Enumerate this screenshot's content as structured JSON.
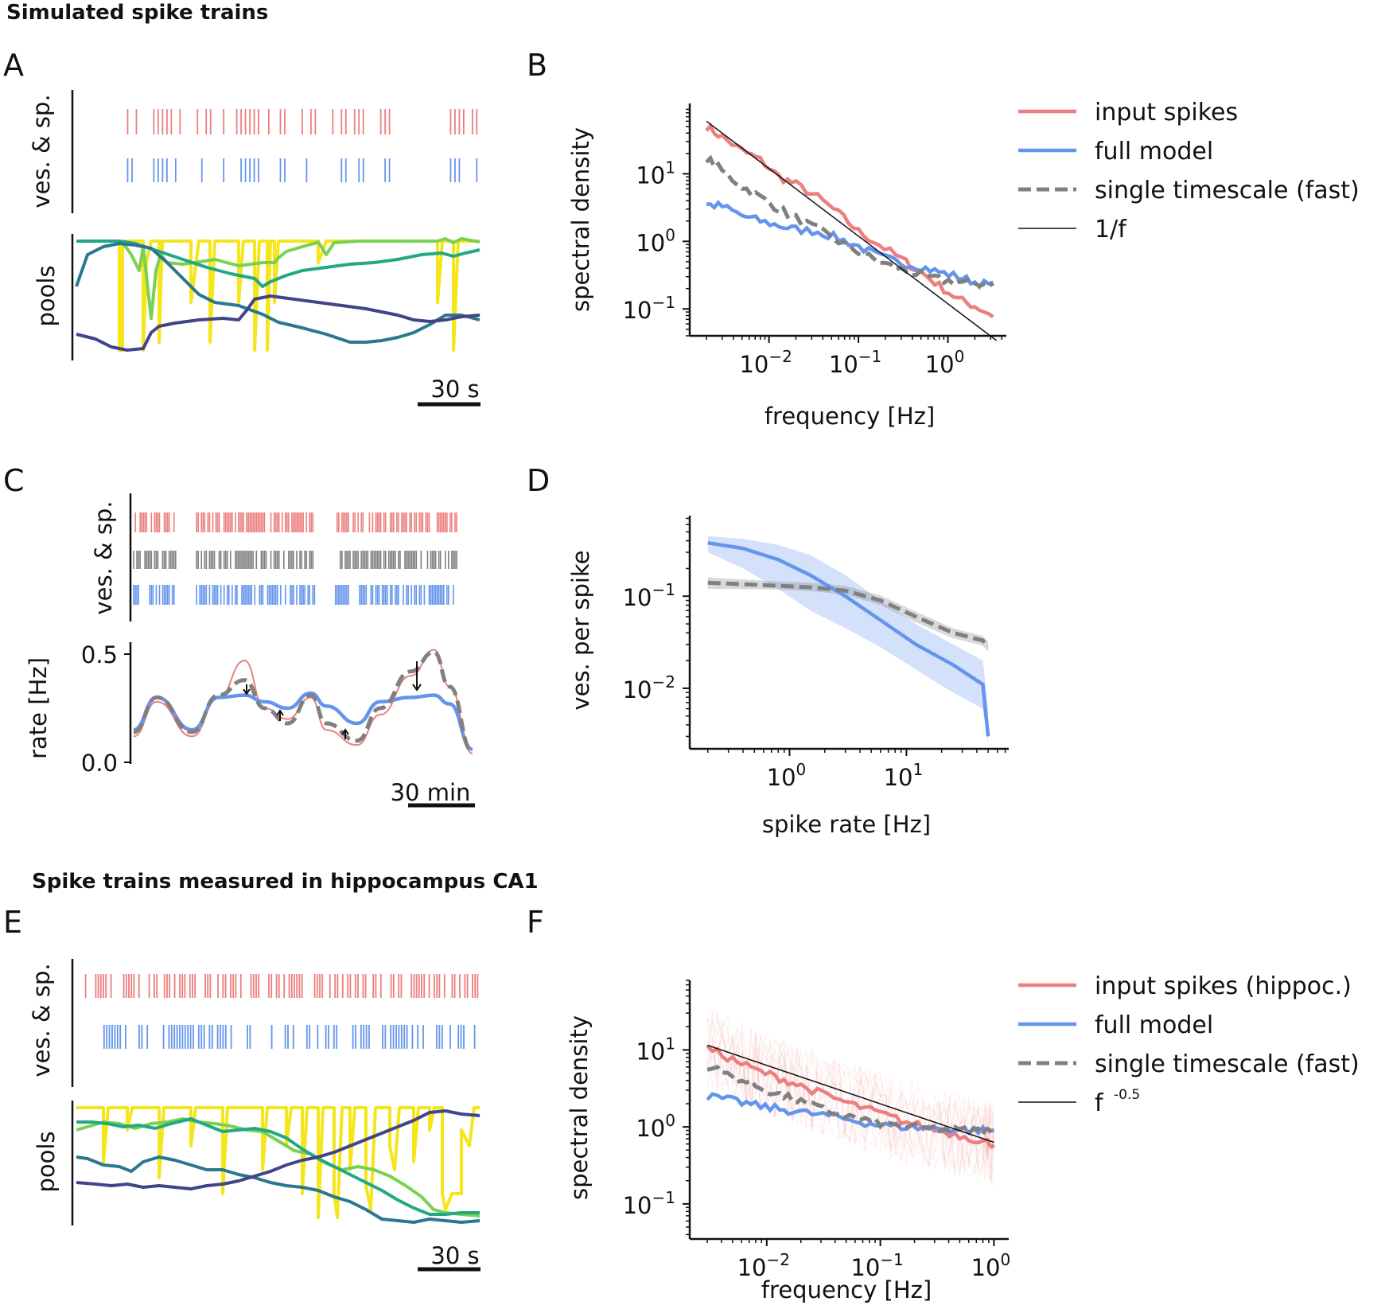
{
  "sections": {
    "simulated": "Simulated spike trains",
    "hippocampus": "Spike trains measured in hippocampus CA1"
  },
  "colors": {
    "red": "#ec7f7f",
    "blue": "#6495ed",
    "gray": "#808080",
    "yellow": "#f5e51b",
    "lightgreen": "#7ad151",
    "green": "#22a884",
    "teal": "#2a788e",
    "navy": "#414487"
  },
  "panelA": {
    "label": "A",
    "ylabel_top": "ves. & sp.",
    "ylabel_bottom": "pools",
    "scalebar": "30 s",
    "chart_data": {
      "type": "raster",
      "input_spike_times_s": [
        3,
        9,
        21,
        24,
        27,
        30,
        33,
        39,
        51,
        57,
        60,
        69,
        78,
        81,
        84,
        87,
        90,
        93,
        100,
        108,
        111,
        123,
        129,
        132,
        144,
        150,
        153,
        159,
        162,
        165,
        177,
        180,
        183,
        225,
        228,
        231,
        234,
        240,
        243
      ],
      "vesicle_release_times_s": [
        3,
        6,
        21,
        24,
        27,
        30,
        36,
        54,
        69,
        81,
        84,
        87,
        90,
        93,
        108,
        111,
        126,
        150,
        153,
        162,
        165,
        180,
        183,
        225,
        228,
        231,
        243
      ],
      "time_range_s": [
        0,
        245
      ]
    }
  },
  "panelB": {
    "label": "B",
    "xlabel": "frequency [Hz]",
    "ylabel": "spectral density",
    "xticks": [
      {
        "e": "-2",
        "v": 0.01
      },
      {
        "e": "-1",
        "v": 0.1
      },
      {
        "e": "0",
        "v": 1
      }
    ],
    "yticks": [
      {
        "e": "1",
        "v": 10
      },
      {
        "e": "0",
        "v": 1
      },
      {
        "e": "-1",
        "v": 0.1
      }
    ],
    "legend": [
      "input spikes",
      "full model",
      "single timescale (fast)",
      "1/f"
    ],
    "chart_data": {
      "type": "line",
      "xscale": "log",
      "yscale": "log",
      "xlim": [
        0.0013,
        4.5
      ],
      "ylim": [
        0.04,
        110
      ],
      "series": [
        {
          "name": "input spikes",
          "x": [
            0.002,
            0.003,
            0.005,
            0.008,
            0.013,
            0.02,
            0.035,
            0.06,
            0.1,
            0.17,
            0.3,
            0.5,
            0.8,
            1.3,
            2.0,
            3.2
          ],
          "y": [
            50,
            35,
            22,
            16,
            9,
            7,
            4.5,
            2.6,
            1.4,
            0.9,
            0.55,
            0.35,
            0.22,
            0.14,
            0.11,
            0.08
          ]
        },
        {
          "name": "full model",
          "x": [
            0.002,
            0.003,
            0.005,
            0.008,
            0.013,
            0.02,
            0.035,
            0.06,
            0.1,
            0.17,
            0.3,
            0.5,
            0.8,
            1.3,
            2.0,
            3.2
          ],
          "y": [
            3.5,
            3.3,
            2.4,
            2.0,
            1.7,
            1.5,
            1.4,
            1.1,
            0.85,
            0.6,
            0.48,
            0.42,
            0.35,
            0.3,
            0.25,
            0.22
          ]
        },
        {
          "name": "single timescale (fast)",
          "x": [
            0.002,
            0.003,
            0.005,
            0.008,
            0.013,
            0.02,
            0.035,
            0.06,
            0.1,
            0.17,
            0.3,
            0.5,
            0.8,
            1.3,
            2.0,
            3.2
          ],
          "y": [
            17,
            11,
            6.5,
            4.5,
            3.0,
            2.2,
            1.5,
            1.0,
            0.7,
            0.5,
            0.38,
            0.32,
            0.27,
            0.25,
            0.24,
            0.23
          ]
        },
        {
          "name": "1/f",
          "x": [
            0.002,
            3.5
          ],
          "y": [
            60,
            0.034
          ]
        }
      ]
    }
  },
  "panelC": {
    "label": "C",
    "ylabel_top": "ves. & sp.",
    "ylabel_bottom": "rate [Hz]",
    "yticks": [
      "0.5",
      "0.0"
    ],
    "scalebar": "30 min",
    "chart_data": {
      "type": "line",
      "xlim_min": [
        0,
        220
      ],
      "ylim": [
        0,
        0.52
      ],
      "spike_rows": [
        "input spikes",
        "single timescale (fast)",
        "full model"
      ],
      "spike_gaps_min": [
        [
          30,
          42
        ],
        [
          133,
          136
        ],
        [
          128,
          140
        ]
      ],
      "series": [
        {
          "name": "input spikes",
          "x": [
            0,
            15,
            38,
            55,
            72,
            85,
            100,
            115,
            125,
            145,
            160,
            180,
            195,
            205,
            220
          ],
          "y": [
            0.12,
            0.28,
            0.12,
            0.3,
            0.47,
            0.25,
            0.2,
            0.3,
            0.15,
            0.08,
            0.22,
            0.4,
            0.52,
            0.35,
            0.04
          ]
        },
        {
          "name": "full model",
          "x": [
            0,
            15,
            38,
            55,
            72,
            85,
            100,
            115,
            125,
            145,
            160,
            180,
            195,
            205,
            220
          ],
          "y": [
            0.15,
            0.3,
            0.15,
            0.3,
            0.31,
            0.28,
            0.25,
            0.32,
            0.26,
            0.18,
            0.28,
            0.3,
            0.31,
            0.27,
            0.06
          ]
        },
        {
          "name": "single timescale (fast)",
          "x": [
            0,
            15,
            38,
            55,
            72,
            85,
            100,
            115,
            125,
            145,
            160,
            180,
            195,
            205,
            220
          ],
          "y": [
            0.14,
            0.3,
            0.14,
            0.31,
            0.38,
            0.25,
            0.18,
            0.31,
            0.18,
            0.1,
            0.25,
            0.42,
            0.51,
            0.35,
            0.05
          ]
        }
      ]
    }
  },
  "panelD": {
    "label": "D",
    "xlabel": "spike rate [Hz]",
    "ylabel": "ves. per spike",
    "xticks": [
      {
        "e": "0",
        "v": 1
      },
      {
        "e": "1",
        "v": 10
      }
    ],
    "yticks": [
      {
        "e": "-1",
        "v": 0.1
      },
      {
        "e": "-2",
        "v": 0.01
      }
    ],
    "chart_data": {
      "type": "area",
      "xscale": "log",
      "yscale": "log",
      "xlim": [
        0.14,
        75
      ],
      "ylim": [
        0.0022,
        0.75
      ],
      "series": [
        {
          "name": "full model",
          "x": [
            0.2,
            0.4,
            0.8,
            1.5,
            3,
            6,
            12,
            25,
            45,
            50
          ],
          "y": [
            0.38,
            0.33,
            0.25,
            0.17,
            0.1,
            0.055,
            0.03,
            0.018,
            0.011,
            0.003
          ],
          "lo": [
            0.3,
            0.2,
            0.12,
            0.07,
            0.045,
            0.028,
            0.016,
            0.009,
            0.006,
            0.0025
          ],
          "hi": [
            0.45,
            0.42,
            0.36,
            0.28,
            0.17,
            0.09,
            0.05,
            0.03,
            0.02,
            0.006
          ]
        },
        {
          "name": "single timescale (fast)",
          "x": [
            0.2,
            0.4,
            0.8,
            1.5,
            3,
            6,
            12,
            25,
            45,
            50
          ],
          "y": [
            0.14,
            0.135,
            0.13,
            0.125,
            0.115,
            0.09,
            0.06,
            0.04,
            0.033,
            0.028
          ],
          "lo": [
            0.12,
            0.12,
            0.118,
            0.114,
            0.104,
            0.08,
            0.052,
            0.035,
            0.029,
            0.025
          ],
          "hi": [
            0.16,
            0.152,
            0.145,
            0.14,
            0.13,
            0.102,
            0.068,
            0.045,
            0.037,
            0.032
          ]
        }
      ]
    }
  },
  "panelE": {
    "label": "E",
    "ylabel_top": "ves. & sp.",
    "ylabel_bottom": "pools",
    "scalebar": "30 s"
  },
  "panelF": {
    "label": "F",
    "xlabel": "frequency [Hz]",
    "ylabel": "spectral density",
    "xticks": [
      {
        "e": "-2",
        "v": 0.01
      },
      {
        "e": "-1",
        "v": 0.1
      },
      {
        "e": "0",
        "v": 1
      }
    ],
    "yticks": [
      {
        "e": "1",
        "v": 10
      },
      {
        "e": "0",
        "v": 1
      },
      {
        "e": "-1",
        "v": 0.1
      }
    ],
    "legend": [
      "input spikes (hippoc.)",
      "full model",
      "single timescale (fast)",
      "f"
    ],
    "legend_exp": "-0.5",
    "chart_data": {
      "type": "line",
      "xscale": "log",
      "yscale": "log",
      "xlim": [
        0.0021,
        1.35
      ],
      "ylim": [
        0.035,
        80
      ],
      "series": [
        {
          "name": "input spikes (hippoc.)",
          "x": [
            0.003,
            0.005,
            0.008,
            0.013,
            0.02,
            0.035,
            0.06,
            0.1,
            0.17,
            0.3,
            0.5,
            0.8,
            1.0
          ],
          "y": [
            10.5,
            7.5,
            5.5,
            4.3,
            3.4,
            2.5,
            1.9,
            1.5,
            1.15,
            0.92,
            0.78,
            0.65,
            0.6
          ]
        },
        {
          "name": "full model",
          "x": [
            0.003,
            0.005,
            0.008,
            0.013,
            0.02,
            0.035,
            0.06,
            0.1,
            0.17,
            0.3,
            0.5,
            0.8,
            1.0
          ],
          "y": [
            2.5,
            2.2,
            1.9,
            1.7,
            1.55,
            1.4,
            1.2,
            1.05,
            1.0,
            0.95,
            0.92,
            0.9,
            0.9
          ]
        },
        {
          "name": "single timescale (fast)",
          "x": [
            0.003,
            0.005,
            0.008,
            0.013,
            0.02,
            0.035,
            0.06,
            0.1,
            0.17,
            0.3,
            0.5,
            0.8,
            1.0
          ],
          "y": [
            6.2,
            4.5,
            3.4,
            2.6,
            2.1,
            1.6,
            1.3,
            1.12,
            1.0,
            0.95,
            0.9,
            0.88,
            0.87
          ]
        },
        {
          "name": "f -0.5",
          "x": [
            0.003,
            1.0
          ],
          "y": [
            11.5,
            0.63
          ]
        }
      ]
    }
  }
}
